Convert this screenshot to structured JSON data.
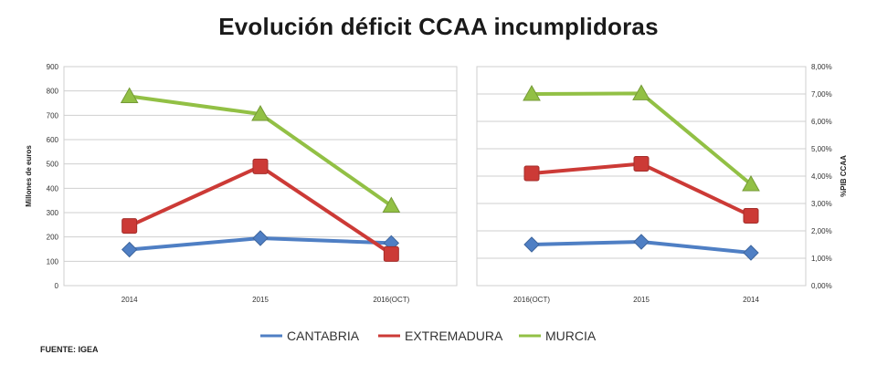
{
  "title": "Evolución déficit CCAA incumplidoras",
  "source": "FUENTE: IGEA",
  "colors": {
    "CANTABRIA": "#4f7fc4",
    "EXTREMADURA": "#cc3a36",
    "MURCIA": "#92c045"
  },
  "legend": [
    "CANTABRIA",
    "EXTREMADURA",
    "MURCIA"
  ],
  "chart_data": [
    {
      "type": "line",
      "title": "",
      "xlabel": "",
      "ylabel": "Millones de euros",
      "categories": [
        "2014",
        "2015",
        "2016(OCT)"
      ],
      "ylim": [
        0,
        900
      ],
      "yticks": [
        "0",
        "100",
        "200",
        "300",
        "400",
        "500",
        "600",
        "700",
        "800",
        "900"
      ],
      "grid": true,
      "legend_position": "bottom",
      "series": [
        {
          "name": "CANTABRIA",
          "values": [
            148,
            195,
            175
          ],
          "marker": "diamond"
        },
        {
          "name": "EXTREMADURA",
          "values": [
            245,
            490,
            130
          ],
          "marker": "square"
        },
        {
          "name": "MURCIA",
          "values": [
            778,
            705,
            328
          ],
          "marker": "triangle"
        }
      ]
    },
    {
      "type": "line",
      "title": "",
      "xlabel": "",
      "ylabel": "%PIB CCAA",
      "categories": [
        "2016(OCT)",
        "2015",
        "2014"
      ],
      "ylim": [
        0,
        8
      ],
      "yticks": [
        "0,00%",
        "1,00%",
        "2,00%",
        "3,00%",
        "4,00%",
        "5,00%",
        "6,00%",
        "7,00%",
        "8,00%"
      ],
      "grid": true,
      "y_axis_side": "right",
      "legend_position": "bottom",
      "series": [
        {
          "name": "CANTABRIA",
          "values": [
            1.5,
            1.6,
            1.2
          ],
          "marker": "diamond"
        },
        {
          "name": "EXTREMADURA",
          "values": [
            4.1,
            4.45,
            2.55
          ],
          "marker": "square"
        },
        {
          "name": "MURCIA",
          "values": [
            7.0,
            7.02,
            3.7
          ],
          "marker": "triangle"
        }
      ]
    }
  ]
}
